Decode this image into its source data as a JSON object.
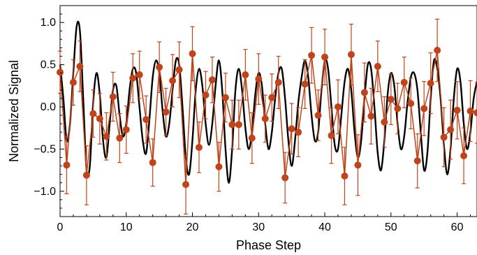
{
  "chart_data": {
    "type": "scatter",
    "title": "",
    "xlabel": "Phase Step",
    "ylabel": "Normalized Signal",
    "xlim": [
      0,
      63
    ],
    "ylim": [
      -1.3,
      1.2
    ],
    "xticks": [
      0,
      10,
      20,
      30,
      40,
      50,
      60
    ],
    "xtick_labels": [
      "0",
      "10",
      "20",
      "30",
      "40",
      "50",
      "60"
    ],
    "yticks": [
      -1.0,
      -0.5,
      0.0,
      0.5,
      1.0
    ],
    "ytick_labels": [
      "−1.0",
      "−0.5",
      "0.0",
      "0.5",
      "1.0"
    ],
    "grid": false,
    "legend": "none",
    "series": [
      {
        "kind": "points-with-error-bars",
        "color": "#c0441b",
        "x": [
          0,
          1,
          2,
          3,
          4,
          5,
          6,
          7,
          8,
          9,
          10,
          11,
          12,
          13,
          14,
          15,
          16,
          17,
          18,
          19,
          20,
          21,
          22,
          23,
          24,
          25,
          26,
          27,
          28,
          29,
          30,
          31,
          32,
          33,
          34,
          35,
          36,
          37,
          38,
          39,
          40,
          41,
          42,
          43,
          44,
          45,
          46,
          47,
          48,
          49,
          50,
          51,
          52,
          53,
          54,
          55,
          56,
          57,
          58,
          59,
          60,
          61,
          62,
          63
        ],
        "y": [
          0.41,
          -0.69,
          0.29,
          0.48,
          -0.81,
          -0.08,
          -0.14,
          -0.35,
          0.12,
          -0.37,
          -0.27,
          0.34,
          0.38,
          -0.15,
          -0.66,
          0.47,
          -0.06,
          0.31,
          0.44,
          -0.92,
          0.63,
          -0.48,
          0.14,
          0.32,
          -0.71,
          0.11,
          -0.21,
          -0.21,
          0.38,
          -0.37,
          0.33,
          -0.14,
          0.11,
          0.29,
          -0.84,
          -0.26,
          -0.3,
          0.27,
          0.61,
          -0.1,
          0.59,
          -0.34,
          0.0,
          -0.82,
          0.62,
          -0.69,
          0.17,
          -0.11,
          0.48,
          -0.18,
          0.09,
          -0.02,
          0.29,
          0.04,
          -0.64,
          -0.02,
          0.28,
          0.67,
          -0.36,
          -0.27,
          -0.04,
          -0.58,
          -0.05,
          -0.07
        ],
        "err": [
          0.25,
          0.34,
          0.27,
          0.3,
          0.35,
          0.28,
          0.3,
          0.28,
          0.29,
          0.29,
          0.28,
          0.29,
          0.28,
          0.28,
          0.28,
          0.3,
          0.28,
          0.31,
          0.33,
          0.35,
          0.32,
          0.3,
          0.28,
          0.27,
          0.29,
          0.29,
          0.29,
          0.29,
          0.3,
          0.3,
          0.3,
          0.28,
          0.28,
          0.31,
          0.3,
          0.3,
          0.29,
          0.29,
          0.33,
          0.3,
          0.33,
          0.33,
          0.32,
          0.34,
          0.36,
          0.36,
          0.35,
          0.33,
          0.3,
          0.3,
          0.3,
          0.3,
          0.3,
          0.3,
          0.32,
          0.32,
          0.36,
          0.37,
          0.35,
          0.35,
          0.34,
          0.33,
          0.36,
          0.36
        ]
      },
      {
        "kind": "line",
        "color": "#000000",
        "x": [
          0,
          0.5,
          1,
          1.5,
          2,
          2.5,
          3,
          3.5,
          4,
          4.5,
          5,
          5.5,
          6,
          6.5,
          7,
          7.5,
          8,
          8.5,
          9,
          9.5,
          10,
          10.5,
          11,
          11.5,
          12,
          12.5,
          13,
          13.5,
          14,
          14.5,
          15,
          15.5,
          16,
          16.5,
          17,
          17.5,
          18,
          18.5,
          19,
          19.5,
          20,
          20.5,
          21,
          21.5,
          22,
          22.5,
          23,
          23.5,
          24,
          24.5,
          25,
          25.5,
          26,
          26.5,
          27,
          27.5,
          28,
          28.5,
          29,
          29.5,
          30,
          30.5,
          31,
          31.5,
          32,
          32.5,
          33,
          33.5,
          34,
          34.5,
          35,
          35.5,
          36,
          36.5,
          37,
          37.5,
          38,
          38.5,
          39,
          39.5,
          40,
          40.5,
          41,
          41.5,
          42,
          42.5,
          43,
          43.5,
          44,
          44.5,
          45,
          45.5,
          46,
          46.5,
          47,
          47.5,
          48,
          48.5,
          49,
          49.5,
          50,
          50.5,
          51,
          51.5,
          52,
          52.5,
          53,
          53.5,
          54,
          54.5,
          55,
          55.5,
          56,
          56.5,
          57,
          57.5,
          58,
          58.5,
          59,
          59.5,
          60,
          60.5,
          61,
          61.5,
          62,
          62.5,
          63
        ],
        "y": [
          0.5,
          0.1,
          -0.4,
          -0.2,
          0.4,
          0.95,
          0.9,
          0.1,
          -0.75,
          -0.7,
          0.05,
          0.4,
          0.15,
          -0.4,
          -0.6,
          -0.2,
          0.2,
          0.25,
          -0.1,
          -0.35,
          -0.2,
          0.2,
          0.45,
          0.4,
          0.0,
          -0.4,
          -0.55,
          -0.15,
          0.35,
          0.55,
          0.4,
          -0.05,
          -0.35,
          -0.2,
          0.2,
          0.55,
          0.5,
          0.0,
          -0.6,
          -0.8,
          -0.4,
          0.2,
          0.45,
          0.25,
          -0.2,
          -0.45,
          -0.2,
          0.25,
          0.55,
          0.2,
          -0.5,
          -0.9,
          -0.5,
          0.2,
          0.45,
          0.2,
          -0.25,
          -0.5,
          -0.3,
          0.15,
          0.4,
          0.25,
          -0.2,
          -0.5,
          -0.3,
          0.1,
          0.4,
          0.45,
          0.1,
          -0.4,
          -0.7,
          -0.4,
          0.05,
          0.35,
          0.55,
          0.35,
          -0.1,
          -0.4,
          -0.3,
          0.2,
          0.55,
          0.45,
          0.0,
          -0.45,
          -0.5,
          -0.1,
          0.3,
          0.45,
          0.2,
          -0.3,
          -0.6,
          -0.4,
          0.1,
          0.5,
          0.45,
          0.0,
          -0.55,
          -0.75,
          -0.4,
          0.15,
          0.4,
          0.25,
          -0.2,
          -0.5,
          -0.35,
          0.05,
          0.35,
          0.4,
          0.2,
          -0.3,
          -0.75,
          -0.55,
          0.1,
          0.55,
          0.45,
          0.1,
          -0.45,
          -0.8,
          -0.5,
          0.1,
          0.45,
          0.3,
          -0.2,
          -0.5,
          -0.3,
          0.1,
          0.3
        ]
      }
    ]
  }
}
